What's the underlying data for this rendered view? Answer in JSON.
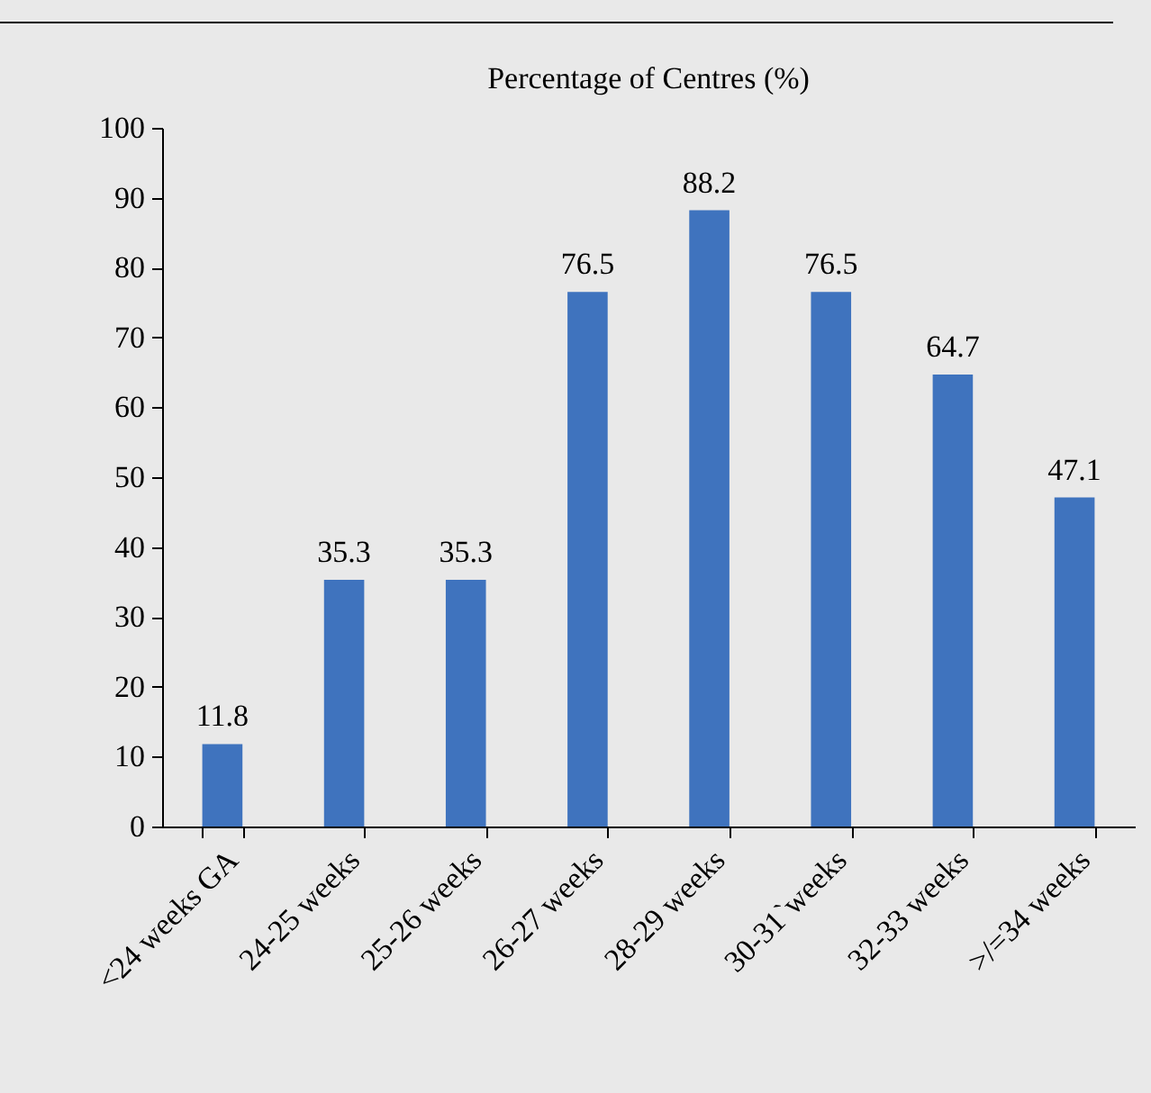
{
  "chart_data": {
    "type": "bar",
    "title": "Percentage of Centres (%)",
    "categories": [
      "<24 weeks GA",
      "24-25 weeks",
      "25-26 weeks",
      "26-27 weeks",
      "28-29 weeks",
      "30-31`weeks",
      "32-33 weeks",
      ">/=34 weeks"
    ],
    "values": [
      11.8,
      35.3,
      35.3,
      76.5,
      88.2,
      76.5,
      64.7,
      47.1
    ],
    "color": "#3f73be",
    "ylim": [
      0,
      100
    ],
    "yticks": [
      0,
      10,
      20,
      30,
      40,
      50,
      60,
      70,
      80,
      90,
      100
    ],
    "data_labels": true,
    "grid": false
  }
}
